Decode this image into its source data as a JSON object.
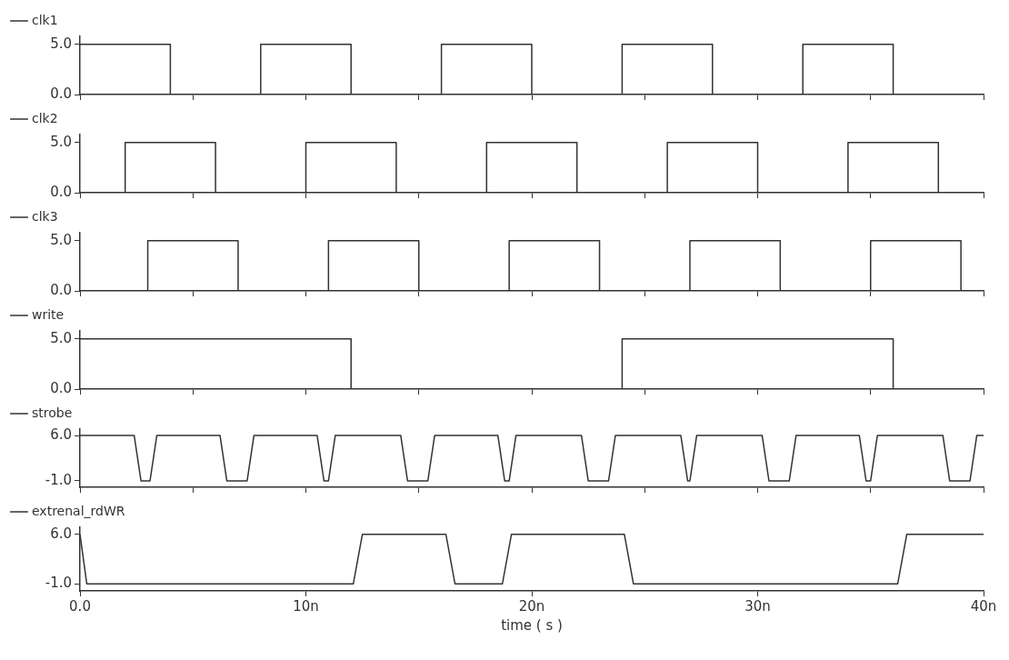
{
  "chart_data": [
    {
      "type": "step",
      "x": [
        0,
        4,
        8,
        12,
        16,
        20,
        24,
        28,
        32,
        36,
        40
      ],
      "series": [
        {
          "name": "clk1",
          "color": "#333333",
          "values": [
            5,
            0,
            5,
            0,
            5,
            0,
            5,
            0,
            5,
            0,
            0
          ]
        }
      ],
      "xlim": [
        0,
        40
      ],
      "ylim": [
        0,
        5.8
      ],
      "yticks": [
        {
          "value": 0,
          "label": "0.0"
        },
        {
          "value": 5,
          "label": "5.0"
        }
      ],
      "tick_labels": "y",
      "legend": "top left"
    },
    {
      "type": "step",
      "x": [
        0,
        2,
        6,
        10,
        14,
        18,
        22,
        26,
        30,
        34,
        38,
        40
      ],
      "series": [
        {
          "name": "clk2",
          "color": "#333333",
          "values": [
            0,
            5,
            0,
            5,
            0,
            5,
            0,
            5,
            0,
            5,
            0,
            0
          ]
        }
      ],
      "xlim": [
        0,
        40
      ],
      "ylim": [
        0,
        5.8
      ],
      "yticks": [
        {
          "value": 0,
          "label": "0.0"
        },
        {
          "value": 5,
          "label": "5.0"
        }
      ],
      "tick_labels": "y",
      "legend": "top left"
    },
    {
      "type": "step",
      "x": [
        0,
        3,
        7,
        11,
        15,
        19,
        23,
        27,
        31,
        35,
        39,
        40
      ],
      "series": [
        {
          "name": "clk3",
          "color": "#333333",
          "values": [
            0,
            5,
            0,
            5,
            0,
            5,
            0,
            5,
            0,
            5,
            0,
            0
          ]
        }
      ],
      "xlim": [
        0,
        40
      ],
      "ylim": [
        0,
        5.8
      ],
      "yticks": [
        {
          "value": 0,
          "label": "0.0"
        },
        {
          "value": 5,
          "label": "5.0"
        }
      ],
      "tick_labels": "y",
      "legend": "top left"
    },
    {
      "type": "step",
      "x": [
        0,
        12,
        24,
        36,
        40
      ],
      "series": [
        {
          "name": "write",
          "color": "#333333",
          "values": [
            5,
            0,
            5,
            0,
            0
          ]
        }
      ],
      "xlim": [
        0,
        40
      ],
      "ylim": [
        0,
        5.8
      ],
      "yticks": [
        {
          "value": 0,
          "label": "0.0"
        },
        {
          "value": 5,
          "label": "5.0"
        }
      ],
      "tick_labels": "y",
      "legend": "top left"
    },
    {
      "type": "line",
      "x": [
        0,
        2.4,
        2.7,
        3.1,
        3.4,
        6.2,
        6.5,
        7.4,
        7.7,
        10.5,
        10.8,
        11.0,
        11.3,
        14.2,
        14.5,
        15.4,
        15.7,
        18.5,
        18.8,
        19.0,
        19.3,
        22.2,
        22.5,
        23.4,
        23.7,
        26.6,
        26.9,
        27.0,
        27.3,
        30.2,
        30.5,
        31.4,
        31.7,
        34.5,
        34.8,
        35.0,
        35.3,
        38.2,
        38.5,
        39.4,
        39.7,
        40
      ],
      "series": [
        {
          "name": "strobe",
          "color": "#333333",
          "values": [
            6,
            6,
            -1,
            -1,
            6,
            6,
            -1,
            -1,
            6,
            6,
            -1,
            -1,
            6,
            6,
            -1,
            -1,
            6,
            6,
            -1,
            -1,
            6,
            6,
            -1,
            -1,
            6,
            6,
            -1,
            -1,
            6,
            6,
            -1,
            -1,
            6,
            6,
            -1,
            -1,
            6,
            6,
            -1,
            -1,
            6,
            6
          ]
        }
      ],
      "xlim": [
        0,
        40
      ],
      "ylim": [
        -2,
        7
      ],
      "yticks": [
        {
          "value": -1,
          "label": "-1.0"
        },
        {
          "value": 6,
          "label": "6.0"
        }
      ],
      "tick_labels": "y",
      "legend": "top left"
    },
    {
      "type": "line",
      "x": [
        0,
        0.3,
        12.1,
        12.5,
        16.2,
        16.6,
        18.7,
        19.1,
        24.1,
        24.5,
        36.2,
        36.6,
        40
      ],
      "series": [
        {
          "name": "extrenal_rdWR",
          "color": "#333333",
          "values": [
            6,
            -1,
            -1,
            6,
            6,
            -1,
            -1,
            6,
            6,
            -1,
            -1,
            6,
            6
          ]
        }
      ],
      "xlim": [
        0,
        40
      ],
      "xticks": [
        {
          "value": 0,
          "label": "0.0"
        },
        {
          "value": 10,
          "label": "10n"
        },
        {
          "value": 20,
          "label": "20n"
        },
        {
          "value": 30,
          "label": "30n"
        },
        {
          "value": 40,
          "label": "40n"
        }
      ],
      "ylim": [
        -2,
        7
      ],
      "yticks": [
        {
          "value": -1,
          "label": "-1.0"
        },
        {
          "value": 6,
          "label": "6.0"
        }
      ],
      "xlabel": "time ( s )",
      "legend": "top left"
    }
  ]
}
